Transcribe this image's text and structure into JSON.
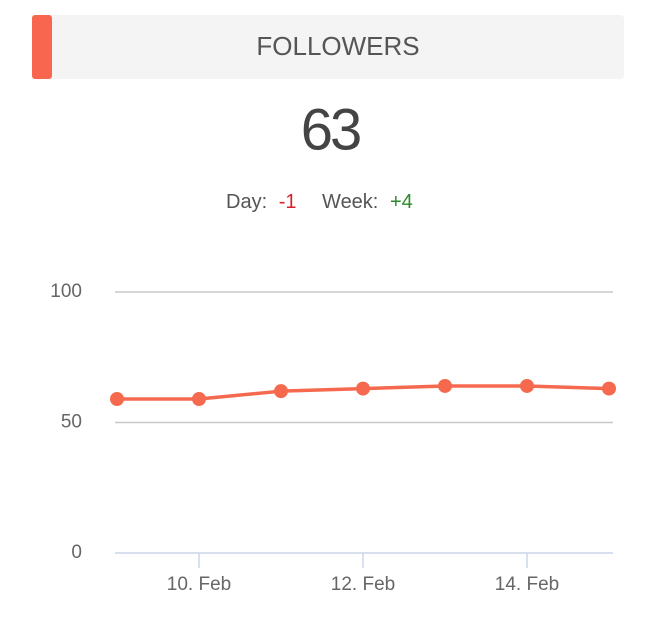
{
  "header": {
    "title": "FOLLOWERS"
  },
  "stats": {
    "value": 63,
    "day_label": "Day:",
    "day_change": "-1",
    "week_label": "Week:",
    "week_change": "+4"
  },
  "chart_data": {
    "type": "line",
    "categories": [
      null,
      "10. Feb",
      null,
      "12. Feb",
      null,
      "14. Feb",
      null
    ],
    "values": [
      59,
      59,
      62,
      63,
      64,
      64,
      63
    ],
    "color": "#f56a4f",
    "ylim": [
      0,
      100
    ],
    "yticks": [
      0,
      50,
      100
    ],
    "grid": true
  }
}
